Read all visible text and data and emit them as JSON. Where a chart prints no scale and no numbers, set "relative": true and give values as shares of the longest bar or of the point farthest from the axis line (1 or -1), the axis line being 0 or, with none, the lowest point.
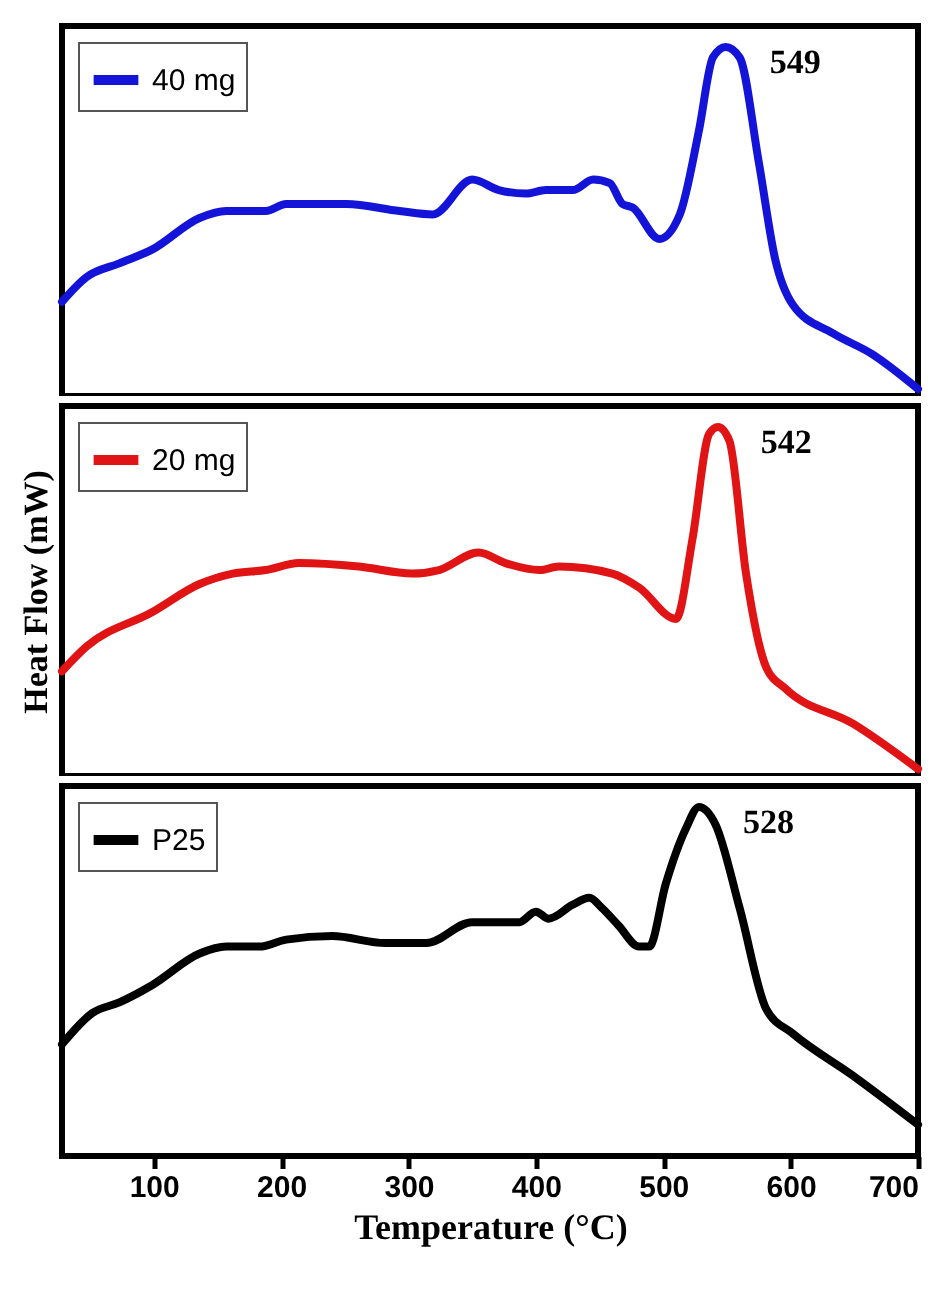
{
  "chart_data": [
    {
      "type": "line",
      "relative": true,
      "xlim": [
        28,
        700
      ],
      "xticks": [
        100,
        200,
        300,
        400,
        500,
        600,
        700
      ],
      "tick_labels": false,
      "legend": "top left",
      "annotations": [
        {
          "text": "549",
          "x": 549,
          "y": 1
        }
      ],
      "x": [
        28,
        47,
        73,
        99,
        136,
        157,
        188,
        204,
        251,
        293,
        319,
        350,
        371,
        392,
        408,
        429,
        445,
        458,
        468,
        476,
        497,
        513,
        528,
        539,
        549,
        560,
        575,
        588,
        602,
        633,
        664,
        700
      ],
      "series": [
        {
          "name": "40 mg",
          "color": "#1414d8",
          "values": [
            0.27,
            0.34,
            0.38,
            0.42,
            0.51,
            0.53,
            0.53,
            0.55,
            0.55,
            0.53,
            0.52,
            0.62,
            0.59,
            0.58,
            0.59,
            0.59,
            0.62,
            0.61,
            0.55,
            0.54,
            0.45,
            0.52,
            0.76,
            0.97,
            1,
            0.97,
            0.67,
            0.39,
            0.26,
            0.18,
            0.12,
            0.02
          ]
        }
      ]
    },
    {
      "type": "line",
      "relative": true,
      "xlim": [
        28,
        700
      ],
      "xticks": [
        100,
        200,
        300,
        400,
        500,
        600,
        700
      ],
      "tick_labels": false,
      "legend": "top left",
      "ylabel": "Heat Flow (mW)",
      "annotations": [
        {
          "text": "542",
          "x": 542,
          "y": 1
        }
      ],
      "x": [
        28,
        47,
        99,
        136,
        162,
        188,
        214,
        261,
        303,
        324,
        355,
        376,
        403,
        418,
        460,
        481,
        510,
        523,
        536,
        543,
        552,
        565,
        581,
        596,
        649,
        700
      ],
      "series": [
        {
          "name": "20 mg",
          "color": "#e01414",
          "values": [
            0.3,
            0.37,
            0.47,
            0.55,
            0.58,
            0.59,
            0.61,
            0.6,
            0.58,
            0.59,
            0.64,
            0.61,
            0.59,
            0.6,
            0.58,
            0.54,
            0.45,
            0.68,
            0.98,
            1,
            0.96,
            0.58,
            0.31,
            0.25,
            0.15,
            0.02
          ]
        }
      ]
    },
    {
      "type": "line",
      "relative": true,
      "xlim": [
        28,
        700
      ],
      "xticks": [
        100,
        200,
        300,
        400,
        500,
        600,
        700
      ],
      "tick_labels": "x",
      "legend": "top left",
      "xlabel": "Temperature (°C)",
      "annotations": [
        {
          "text": "528",
          "x": 528,
          "y": 1
        }
      ],
      "x": [
        28,
        52,
        73,
        99,
        136,
        157,
        183,
        204,
        240,
        282,
        314,
        350,
        371,
        387,
        400,
        410,
        429,
        442,
        452,
        465,
        481,
        489,
        502,
        518,
        528,
        541,
        560,
        581,
        602,
        649,
        700
      ],
      "series": [
        {
          "name": "P25",
          "color": "#000000",
          "values": [
            0.32,
            0.41,
            0.44,
            0.49,
            0.58,
            0.6,
            0.6,
            0.62,
            0.63,
            0.61,
            0.61,
            0.67,
            0.67,
            0.67,
            0.7,
            0.68,
            0.72,
            0.74,
            0.71,
            0.66,
            0.6,
            0.6,
            0.78,
            0.94,
            1,
            0.95,
            0.71,
            0.42,
            0.35,
            0.23,
            0.09
          ]
        }
      ]
    }
  ]
}
